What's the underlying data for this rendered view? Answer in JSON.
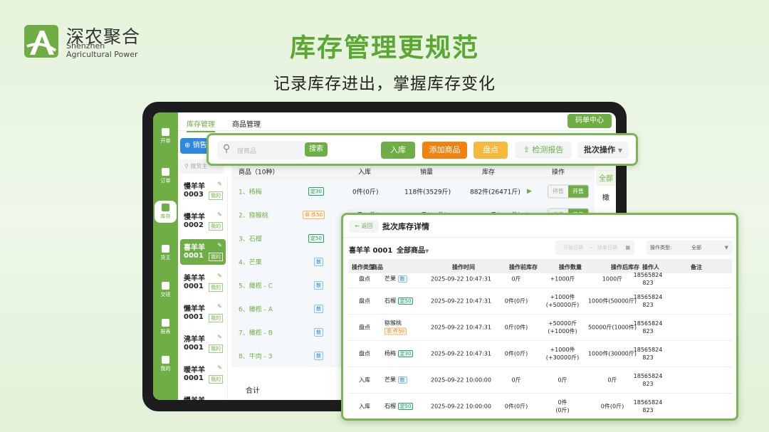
{
  "brand": {
    "name_cn": "深农聚合",
    "name_en_1": "Shenzhen",
    "name_en_2": "Agricultural Power",
    "color": "#6fae45"
  },
  "headline": "库存管理更规范",
  "subheadline": "记录库存进出，掌握库存变化",
  "sidebar": [
    {
      "label": "开单",
      "icon": "download-icon"
    },
    {
      "label": "订单",
      "icon": "clipboard-icon"
    },
    {
      "label": "库存",
      "icon": "warehouse-icon",
      "active": true
    },
    {
      "label": "货主",
      "icon": "owner-icon"
    },
    {
      "label": "交班",
      "icon": "users-icon"
    },
    {
      "label": "报表",
      "icon": "pie-chart-icon"
    },
    {
      "label": "我的",
      "icon": "user-icon"
    }
  ],
  "tabs": [
    "库存管理",
    "商品管理"
  ],
  "code_center": "码单中心",
  "sell_button": "销售",
  "owner_search_placeholder": "搜货主",
  "sellers": [
    {
      "name": "慢羊羊",
      "code": "0003",
      "tag": "我的"
    },
    {
      "name": "慢羊羊",
      "code": "0002",
      "tag": "我的"
    },
    {
      "name": "喜羊羊",
      "code": "0001",
      "tag": "我的",
      "active": true
    },
    {
      "name": "美羊羊",
      "code": "0001",
      "tag": "我的"
    },
    {
      "name": "懒羊羊",
      "code": "0001",
      "tag": "我的"
    },
    {
      "name": "沸羊羊",
      "code": "0001",
      "tag": "我的"
    },
    {
      "name": "暖羊羊",
      "code": "0001",
      "tag": "我的"
    },
    {
      "name": "慢羊羊",
      "code": "",
      "tag": ""
    }
  ],
  "toolbar": {
    "search_placeholder": "搜商品",
    "search": "搜索",
    "stock_in": "入库",
    "add_product": "添加商品",
    "stocktake": "盘点",
    "report": "检测报告",
    "batch": "批次操作"
  },
  "table": {
    "headers": [
      "商品（10种）",
      "入库",
      "销量",
      "库存",
      "操作"
    ],
    "rows": [
      {
        "name": "1、杨梅",
        "badge": "定30",
        "type": "ding",
        "in": "0件(0斤)",
        "sales": "118件(3529斤)",
        "stock": "882件(26471斤)"
      },
      {
        "name": "2、猕猴桃",
        "badge": "非 件50",
        "type": "fei",
        "in": "0斤(0件)",
        "sales": "3049斤(11件)",
        "stock": "47957斤(999件)"
      },
      {
        "name": "3、石榴",
        "badge": "定50",
        "type": "ding"
      },
      {
        "name": "4、芒果",
        "badge": "散",
        "type": "san"
      },
      {
        "name": "5、橄榄 - C",
        "badge": "散",
        "type": "san"
      },
      {
        "name": "6、橄榄 - A",
        "badge": "散",
        "type": "san"
      },
      {
        "name": "7、橄榄 - B",
        "badge": "散",
        "type": "san"
      },
      {
        "name": "8、牛肉 - 3",
        "badge": "散",
        "type": "san"
      }
    ],
    "stop_sale": "停售",
    "start_sale": "开售",
    "total": "合计"
  },
  "right_filter": [
    "全部",
    "橄"
  ],
  "popup": {
    "back": "返回",
    "title": "批次库存详情",
    "owner": "喜羊羊 0001",
    "product_filter": "全部商品",
    "start_date": "开始日期",
    "end_date": "结束日期",
    "op_type_label": "操作类型:",
    "op_type_value": "全部",
    "headers": [
      "操作类型",
      "商品",
      "操作时间",
      "操作前库存",
      "操作数量",
      "操作后库存",
      "操作人",
      "备注"
    ],
    "rows": [
      {
        "type": "盘点",
        "product": "芒果",
        "badge": "散",
        "btype": "san",
        "time": "2025-09-22 10:47:31",
        "before": "0斤",
        "qty": "+1000斤",
        "after": "1000斤",
        "op": "18565824\n823"
      },
      {
        "type": "盘点",
        "product": "石榴",
        "badge": "定50",
        "btype": "ding",
        "time": "2025-09-22 10:47:31",
        "before": "0件(0斤)",
        "qty": "+1000件\n(+50000斤)",
        "after": "1000件(50000斤)",
        "op": "18565824\n823"
      },
      {
        "type": "盘点",
        "product": "猕猴桃",
        "badge": "非 件50",
        "btype": "fei",
        "time": "2025-09-22 10:47:31",
        "before": "0斤(0件)",
        "qty": "+50000斤\n(+1000件)",
        "after": "50000斤(1000件)",
        "op": "18565824\n823"
      },
      {
        "type": "盘点",
        "product": "杨梅",
        "badge": "定30",
        "btype": "ding",
        "time": "2025-09-22 10:47:31",
        "before": "0件(0斤)",
        "qty": "+1000件\n(+30000斤)",
        "after": "1000件(30000斤)",
        "op": "18565824\n823"
      },
      {
        "type": "入库",
        "product": "芒果",
        "badge": "散",
        "btype": "san",
        "time": "2025-09-22 10:00:00",
        "before": "0斤",
        "qty": "0斤",
        "after": "0斤",
        "op": "18565824\n823"
      },
      {
        "type": "入库",
        "product": "石榴",
        "badge": "定50",
        "btype": "ding",
        "time": "2025-09-22 10:00:00",
        "before": "0件(0斤)",
        "qty": "0件\n(0斤)",
        "after": "0件(0斤)",
        "op": "18565824\n823"
      }
    ]
  }
}
